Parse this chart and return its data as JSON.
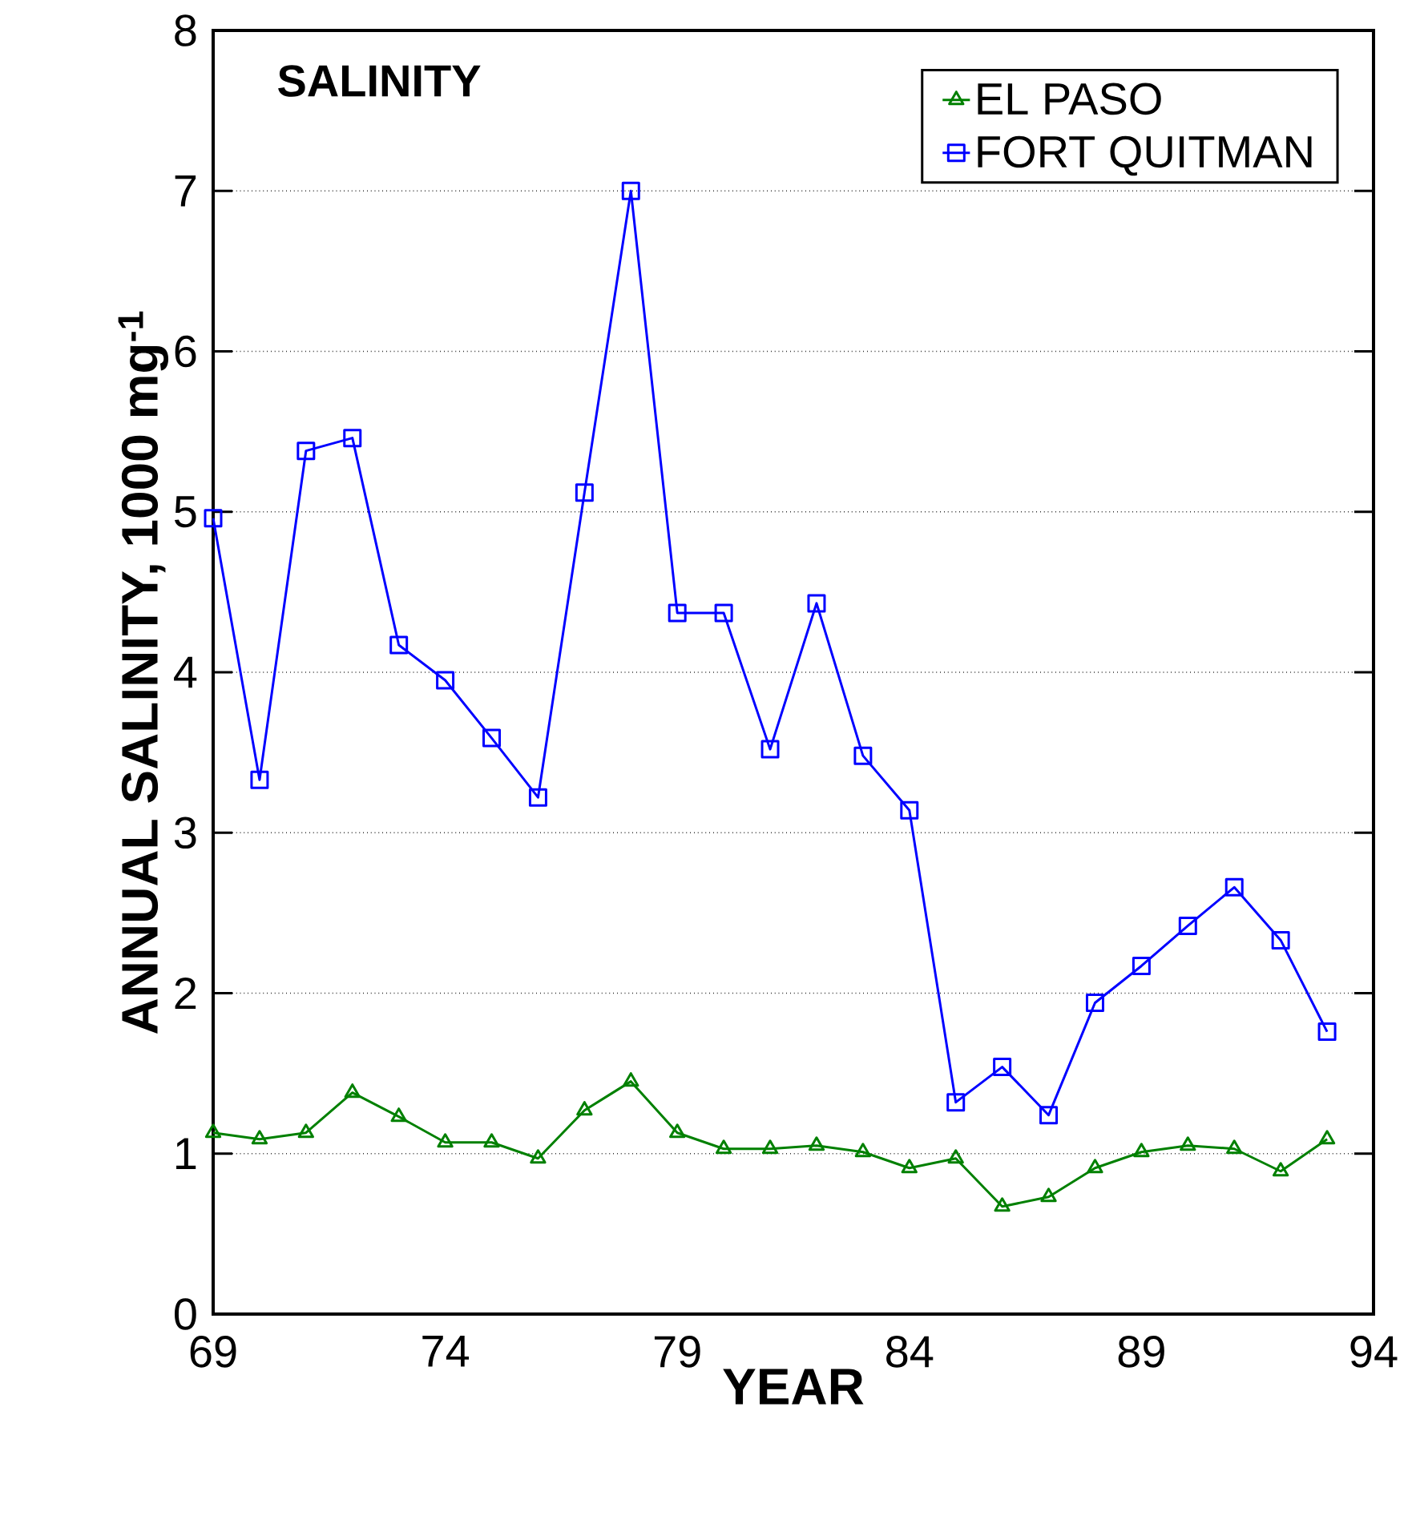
{
  "chart_data": {
    "type": "line",
    "title": "SALINITY",
    "xlabel": "YEAR",
    "ylabel": "ANNUAL SALINITY, 1000 mg$^{-1}$",
    "x": [
      69,
      70,
      71,
      72,
      73,
      74,
      75,
      76,
      77,
      78,
      79,
      80,
      81,
      82,
      83,
      84,
      85,
      86,
      87,
      88,
      89,
      90,
      91,
      92,
      93
    ],
    "series": [
      {
        "name": "EL PASO",
        "color": "#008000",
        "marker": "triangle",
        "values": [
          1.13,
          1.09,
          1.13,
          1.38,
          1.23,
          1.07,
          1.07,
          0.97,
          1.27,
          1.45,
          1.13,
          1.03,
          1.03,
          1.05,
          1.01,
          0.91,
          0.97,
          0.67,
          0.73,
          0.91,
          1.01,
          1.05,
          1.03,
          0.89,
          1.09
        ]
      },
      {
        "name": "FORT QUITMAN",
        "color": "#0000ff",
        "marker": "square",
        "values": [
          4.96,
          3.33,
          5.38,
          5.46,
          4.17,
          3.95,
          3.59,
          3.22,
          5.12,
          7.0,
          4.37,
          4.37,
          3.52,
          4.43,
          3.48,
          3.14,
          1.32,
          1.54,
          1.24,
          1.94,
          2.17,
          2.42,
          2.66,
          2.33,
          1.76
        ]
      }
    ],
    "xlim": [
      69,
      94
    ],
    "xticks": [
      69,
      74,
      79,
      84,
      89,
      94
    ],
    "ylim": [
      0,
      8
    ],
    "yticks": [
      0,
      1,
      2,
      3,
      4,
      5,
      6,
      7,
      8
    ],
    "grid": "y",
    "legend": "top right",
    "line_style": "solid"
  }
}
